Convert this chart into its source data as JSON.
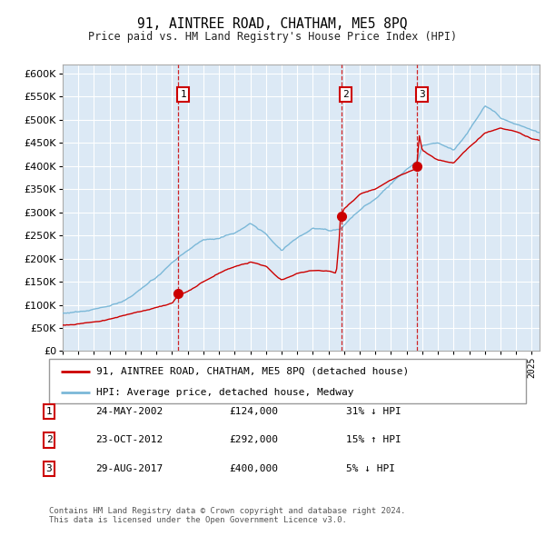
{
  "title": "91, AINTREE ROAD, CHATHAM, ME5 8PQ",
  "subtitle": "Price paid vs. HM Land Registry's House Price Index (HPI)",
  "ylim": [
    0,
    620000
  ],
  "yticks": [
    0,
    50000,
    100000,
    150000,
    200000,
    250000,
    300000,
    350000,
    400000,
    450000,
    500000,
    550000,
    600000
  ],
  "bg_color": "#dce9f5",
  "grid_color": "#ffffff",
  "hpi_color": "#7bb8d8",
  "price_color": "#cc0000",
  "vline_color": "#cc0000",
  "sale1_x": 2002.388,
  "sale1_y": 124000,
  "sale2_x": 2012.808,
  "sale2_y": 292000,
  "sale3_x": 2017.655,
  "sale3_y": 400000,
  "legend_property": "91, AINTREE ROAD, CHATHAM, ME5 8PQ (detached house)",
  "legend_hpi": "HPI: Average price, detached house, Medway",
  "table_rows": [
    [
      "1",
      "24-MAY-2002",
      "£124,000",
      "31% ↓ HPI"
    ],
    [
      "2",
      "23-OCT-2012",
      "£292,000",
      "15% ↑ HPI"
    ],
    [
      "3",
      "29-AUG-2017",
      "£400,000",
      "5% ↓ HPI"
    ]
  ],
  "footnote": "Contains HM Land Registry data © Crown copyright and database right 2024.\nThis data is licensed under the Open Government Licence v3.0.",
  "xmin": 1995.0,
  "xmax": 2025.5
}
